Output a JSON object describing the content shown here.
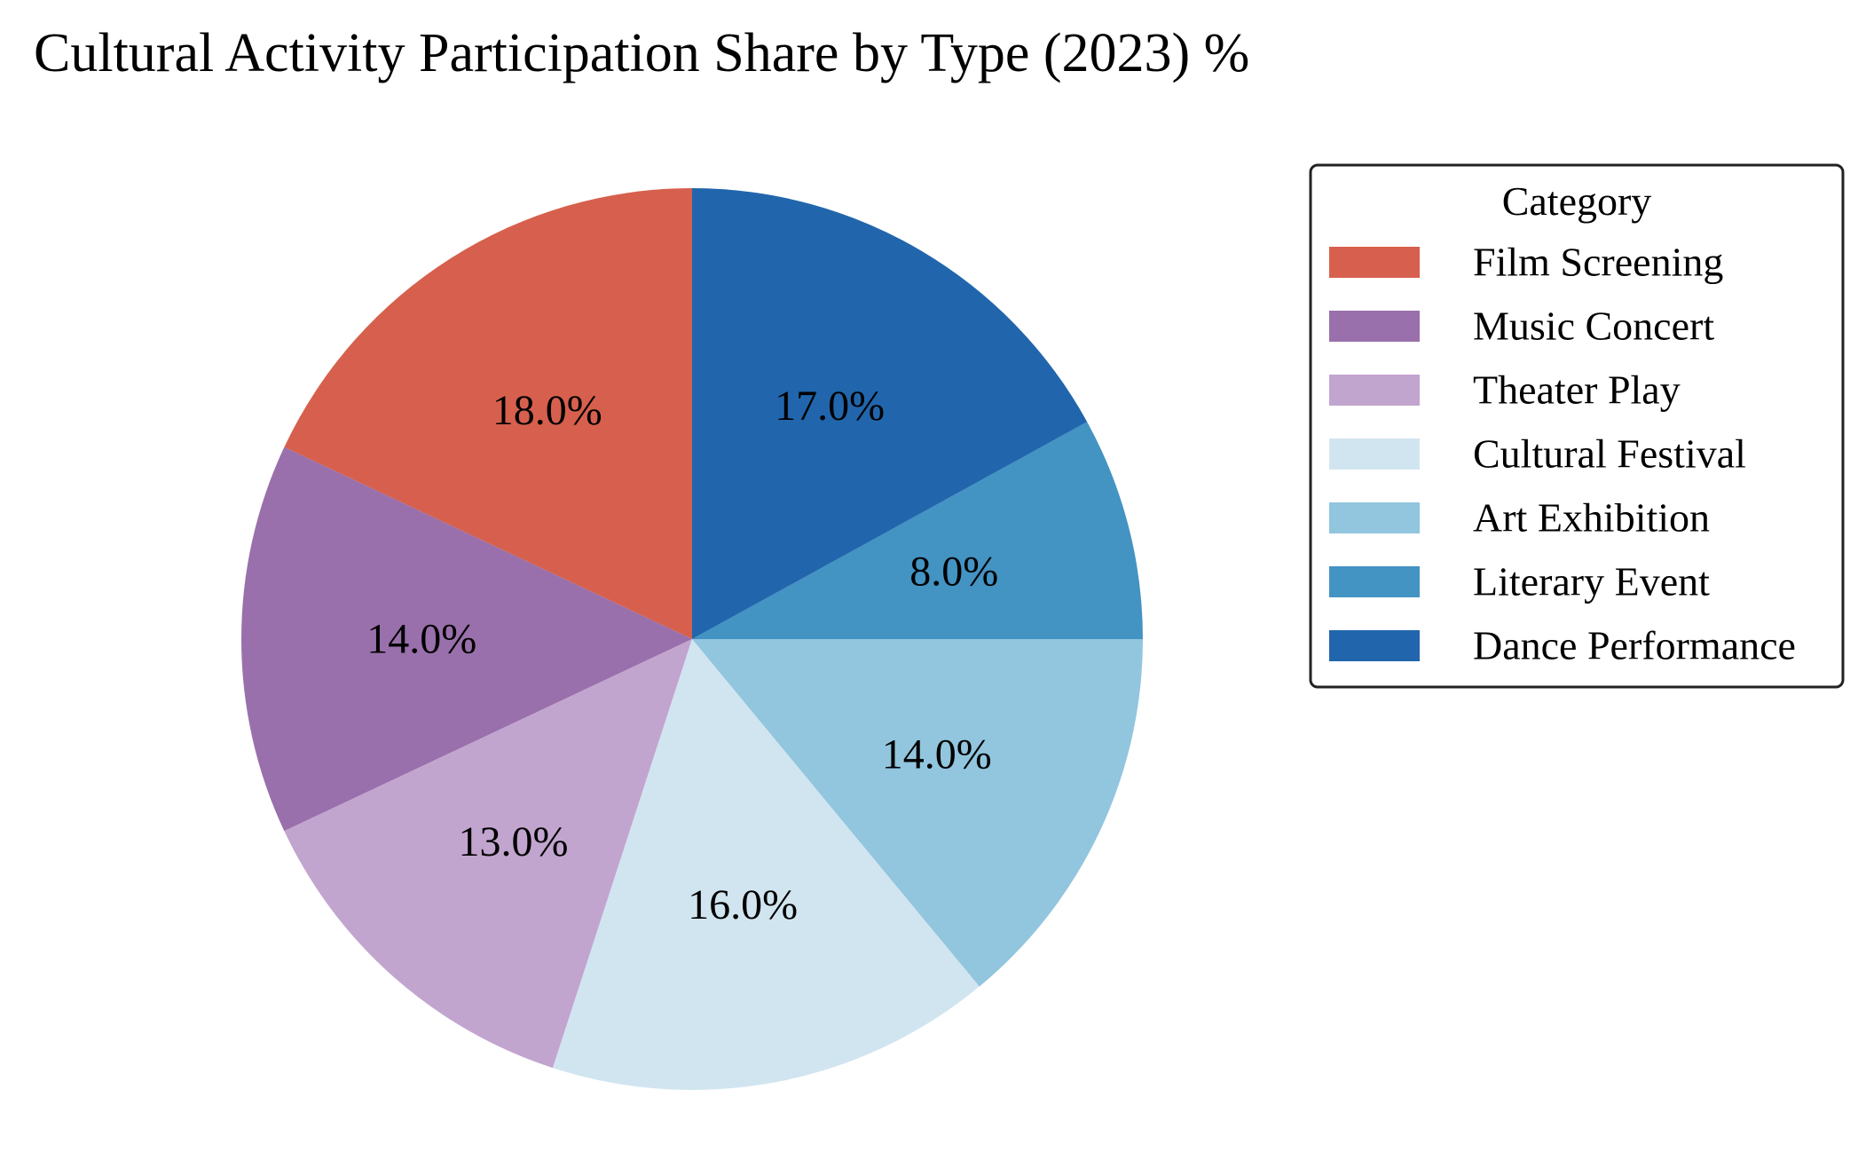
{
  "chart_data": {
    "type": "pie",
    "title": "Cultural Activity Participation Share by Type (2023) %",
    "legend_title": "Category",
    "legend_position": "right",
    "start_angle_deg": 90,
    "direction": "counterclockwise",
    "slices": [
      {
        "label": "Film Screening",
        "value": 18.0,
        "display": "18.0%",
        "color": "#d6604d"
      },
      {
        "label": "Music Concert",
        "value": 14.0,
        "display": "14.0%",
        "color": "#9970ab"
      },
      {
        "label": "Theater Play",
        "value": 13.0,
        "display": "13.0%",
        "color": "#c2a5cf"
      },
      {
        "label": "Cultural Festival",
        "value": 16.0,
        "display": "16.0%",
        "color": "#d1e5f0"
      },
      {
        "label": "Art Exhibition",
        "value": 14.0,
        "display": "14.0%",
        "color": "#92c5de"
      },
      {
        "label": "Literary Event",
        "value": 8.0,
        "display": "8.0%",
        "color": "#4393c3"
      },
      {
        "label": "Dance Performance",
        "value": 17.0,
        "display": "17.0%",
        "color": "#2166ac"
      }
    ]
  }
}
